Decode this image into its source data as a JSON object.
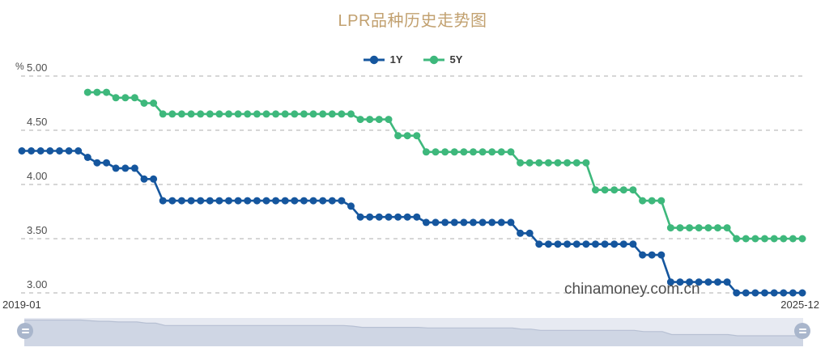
{
  "title": "LPR品种历史走势图",
  "watermark": "chinamoney.com.cn",
  "legend": {
    "items": [
      {
        "label": "1Y",
        "color": "#15569E"
      },
      {
        "label": "5Y",
        "color": "#3EB87C"
      }
    ]
  },
  "y_axis": {
    "unit": "%",
    "tick_labels": [
      "5.00",
      "4.50",
      "4.00",
      "3.50",
      "3.00"
    ]
  },
  "x_axis": {
    "start_label": "2019-01",
    "end_label": "2025-12"
  },
  "colors": {
    "title": "#C2A170",
    "series_1y": "#15569E",
    "series_5y": "#3EB87C",
    "gridline": "#ADADAD",
    "axis_text": "#4D4D4D",
    "watermark_text": "#4F4F4F",
    "slider_track": "#E7EAF2",
    "slider_shadow_fill": "#CfD6E4",
    "slider_shadow_line": "#B7C0D3",
    "slider_handle": "#A9B6CC"
  },
  "slider": {
    "left_handle_icon": "grip-lines-icon",
    "right_handle_icon": "grip-lines-icon"
  },
  "chart_data": {
    "type": "line",
    "title": "LPR品种历史走势图",
    "xlabel": "",
    "ylabel": "%",
    "x_unit": "month",
    "ylim": [
      3.0,
      5.0
    ],
    "y_ticks": [
      5.0,
      4.5,
      4.0,
      3.5,
      3.0
    ],
    "grid": "dashed-horizontal",
    "legend_position": "top-center",
    "x": [
      "2019-01",
      "2019-02",
      "2019-03",
      "2019-04",
      "2019-05",
      "2019-06",
      "2019-07",
      "2019-08",
      "2019-09",
      "2019-10",
      "2019-11",
      "2019-12",
      "2020-01",
      "2020-02",
      "2020-03",
      "2020-04",
      "2020-05",
      "2020-06",
      "2020-07",
      "2020-08",
      "2020-09",
      "2020-10",
      "2020-11",
      "2020-12",
      "2021-01",
      "2021-02",
      "2021-03",
      "2021-04",
      "2021-05",
      "2021-06",
      "2021-07",
      "2021-08",
      "2021-09",
      "2021-10",
      "2021-11",
      "2021-12",
      "2022-01",
      "2022-02",
      "2022-03",
      "2022-04",
      "2022-05",
      "2022-06",
      "2022-07",
      "2022-08",
      "2022-09",
      "2022-10",
      "2022-11",
      "2022-12",
      "2023-01",
      "2023-02",
      "2023-03",
      "2023-04",
      "2023-05",
      "2023-06",
      "2023-07",
      "2023-08",
      "2023-09",
      "2023-10",
      "2023-11",
      "2023-12",
      "2024-01",
      "2024-02",
      "2024-03",
      "2024-04",
      "2024-05",
      "2024-06",
      "2024-07",
      "2024-08",
      "2024-09",
      "2024-10",
      "2024-11",
      "2024-12",
      "2025-01",
      "2025-02",
      "2025-03",
      "2025-04",
      "2025-05",
      "2025-06",
      "2025-07",
      "2025-08",
      "2025-09",
      "2025-10",
      "2025-11",
      "2025-12"
    ],
    "series": [
      {
        "name": "1Y",
        "color": "#15569E",
        "values": [
          4.31,
          4.31,
          4.31,
          4.31,
          4.31,
          4.31,
          4.31,
          4.25,
          4.2,
          4.2,
          4.15,
          4.15,
          4.15,
          4.05,
          4.05,
          3.85,
          3.85,
          3.85,
          3.85,
          3.85,
          3.85,
          3.85,
          3.85,
          3.85,
          3.85,
          3.85,
          3.85,
          3.85,
          3.85,
          3.85,
          3.85,
          3.85,
          3.85,
          3.85,
          3.85,
          3.8,
          3.7,
          3.7,
          3.7,
          3.7,
          3.7,
          3.7,
          3.7,
          3.65,
          3.65,
          3.65,
          3.65,
          3.65,
          3.65,
          3.65,
          3.65,
          3.65,
          3.65,
          3.55,
          3.55,
          3.45,
          3.45,
          3.45,
          3.45,
          3.45,
          3.45,
          3.45,
          3.45,
          3.45,
          3.45,
          3.45,
          3.35,
          3.35,
          3.35,
          3.1,
          3.1,
          3.1,
          3.1,
          3.1,
          3.1,
          3.1,
          3.0,
          3.0,
          3.0,
          3.0,
          3.0,
          3.0,
          3.0,
          3.0
        ]
      },
      {
        "name": "5Y",
        "color": "#3EB87C",
        "values": [
          null,
          null,
          null,
          null,
          null,
          null,
          null,
          4.85,
          4.85,
          4.85,
          4.8,
          4.8,
          4.8,
          4.75,
          4.75,
          4.65,
          4.65,
          4.65,
          4.65,
          4.65,
          4.65,
          4.65,
          4.65,
          4.65,
          4.65,
          4.65,
          4.65,
          4.65,
          4.65,
          4.65,
          4.65,
          4.65,
          4.65,
          4.65,
          4.65,
          4.65,
          4.6,
          4.6,
          4.6,
          4.6,
          4.45,
          4.45,
          4.45,
          4.3,
          4.3,
          4.3,
          4.3,
          4.3,
          4.3,
          4.3,
          4.3,
          4.3,
          4.3,
          4.2,
          4.2,
          4.2,
          4.2,
          4.2,
          4.2,
          4.2,
          4.2,
          3.95,
          3.95,
          3.95,
          3.95,
          3.95,
          3.85,
          3.85,
          3.85,
          3.6,
          3.6,
          3.6,
          3.6,
          3.6,
          3.6,
          3.6,
          3.5,
          3.5,
          3.5,
          3.5,
          3.5,
          3.5,
          3.5,
          3.5
        ]
      }
    ]
  }
}
